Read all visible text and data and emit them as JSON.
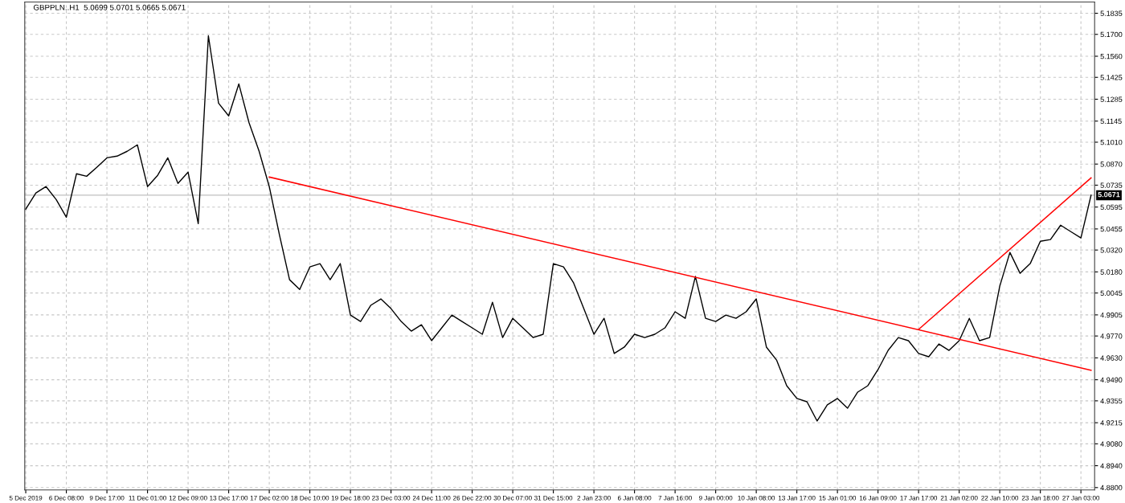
{
  "chart_data": {
    "type": "line",
    "title": "GBPPLN..H1  5.0699 5.0701 5.0665 5.0671",
    "categories": [
      "5 Dec 2019",
      null,
      null,
      null,
      "6 Dec 08:00",
      null,
      null,
      null,
      "9 Dec 17:00",
      null,
      null,
      null,
      "11 Dec 01:00",
      null,
      null,
      null,
      "12 Dec 09:00",
      null,
      null,
      null,
      "13 Dec 17:00",
      null,
      null,
      null,
      "17 Dec 02:00",
      null,
      null,
      null,
      "18 Dec 10:00",
      null,
      null,
      null,
      "19 Dec 18:00",
      null,
      null,
      null,
      "23 Dec 03:00",
      null,
      null,
      null,
      "24 Dec 11:00",
      null,
      null,
      null,
      "26 Dec 22:00",
      null,
      null,
      null,
      "30 Dec 07:00",
      null,
      null,
      null,
      "31 Dec 15:00",
      null,
      null,
      null,
      "2 Jan 23:00",
      null,
      null,
      null,
      "6 Jan 08:00",
      null,
      null,
      null,
      "7 Jan 16:00",
      null,
      null,
      null,
      "9 Jan 00:00",
      null,
      null,
      null,
      "10 Jan 08:00",
      null,
      null,
      null,
      "13 Jan 17:00",
      null,
      null,
      null,
      "15 Jan 01:00",
      null,
      null,
      null,
      "16 Jan 09:00",
      null,
      null,
      null,
      "17 Jan 17:00",
      null,
      null,
      null,
      "21 Jan 02:00",
      null,
      null,
      null,
      "22 Jan 10:00",
      null,
      null,
      null,
      "23 Jan 18:00",
      null,
      null,
      null,
      "27 Jan 03:00",
      null
    ],
    "series": [
      {
        "color": "#000000",
        "values": [
          5.0582,
          5.0685,
          5.0726,
          5.0643,
          5.053,
          5.0808,
          5.0792,
          5.0849,
          5.091,
          5.0921,
          5.0952,
          5.0993,
          5.0726,
          5.0798,
          5.091,
          5.0746,
          5.0818,
          5.0489,
          5.1691,
          5.126,
          5.1178,
          5.1383,
          5.1136,
          5.0952,
          5.0726,
          5.0418,
          5.013,
          5.0068,
          5.0212,
          5.0233,
          5.013,
          5.0233,
          4.9904,
          4.9863,
          4.9966,
          5.0007,
          4.9945,
          4.9863,
          4.9801,
          4.9842,
          4.974,
          4.9822,
          4.9904,
          4.9863,
          4.9822,
          4.9781,
          4.9986,
          4.976,
          4.9883,
          4.9822,
          4.976,
          4.9781,
          5.0233,
          5.0212,
          5.0109,
          4.9945,
          4.9781,
          4.9883,
          4.9658,
          4.9699,
          4.9781,
          4.976,
          4.9781,
          4.9822,
          4.9925,
          4.9883,
          5.0151,
          4.9883,
          4.9863,
          4.9904,
          4.9883,
          4.9925,
          5.0007,
          4.9699,
          4.9616,
          4.9452,
          4.937,
          4.9349,
          4.9226,
          4.9329,
          4.937,
          4.9308,
          4.9411,
          4.9452,
          4.9555,
          4.9678,
          4.976,
          4.974,
          4.9658,
          4.9637,
          4.9719,
          4.9678,
          4.974,
          4.9883,
          4.974,
          4.976,
          5.0089,
          5.0305,
          5.0171,
          5.0233,
          5.0376,
          5.0387,
          5.0479,
          5.0438,
          5.0397,
          5.0671
        ]
      },
      {
        "type": "line",
        "color": "#ff0000",
        "values": [
          null,
          null,
          null,
          null,
          null,
          null,
          null,
          null,
          null,
          null,
          null,
          null,
          null,
          null,
          null,
          null,
          null,
          null,
          null,
          null,
          null,
          null,
          null,
          null,
          5.0787,
          null,
          null,
          null,
          null,
          null,
          null,
          null,
          null,
          null,
          null,
          null,
          null,
          null,
          null,
          null,
          null,
          null,
          null,
          null,
          null,
          null,
          null,
          null,
          null,
          null,
          null,
          null,
          null,
          null,
          null,
          null,
          null,
          null,
          null,
          null,
          null,
          null,
          null,
          null,
          null,
          null,
          null,
          null,
          null,
          null,
          null,
          null,
          null,
          null,
          null,
          null,
          null,
          null,
          null,
          null,
          null,
          null,
          null,
          null,
          null,
          null,
          null,
          null,
          null,
          null,
          null,
          null,
          null,
          null,
          null,
          null,
          null,
          null,
          null,
          null,
          null,
          null,
          null,
          null,
          null,
          4.955
        ]
      },
      {
        "type": "line",
        "color": "#ff0000",
        "values": [
          null,
          null,
          null,
          null,
          null,
          null,
          null,
          null,
          null,
          null,
          null,
          null,
          null,
          null,
          null,
          null,
          null,
          null,
          null,
          null,
          null,
          null,
          null,
          null,
          null,
          null,
          null,
          null,
          null,
          null,
          null,
          null,
          null,
          null,
          null,
          null,
          null,
          null,
          null,
          null,
          null,
          null,
          null,
          null,
          null,
          null,
          null,
          null,
          null,
          null,
          null,
          null,
          null,
          null,
          null,
          null,
          null,
          null,
          null,
          null,
          null,
          null,
          null,
          null,
          null,
          null,
          null,
          null,
          null,
          null,
          null,
          null,
          null,
          null,
          null,
          null,
          null,
          null,
          null,
          null,
          null,
          null,
          null,
          null,
          null,
          null,
          null,
          null,
          4.9812,
          null,
          null,
          null,
          null,
          null,
          null,
          null,
          null,
          null,
          null,
          null,
          null,
          null,
          null,
          null,
          null,
          5.0782
        ]
      }
    ],
    "ylim": [
      4.8785,
      5.1907
    ],
    "yticks": [
      {
        "value": 4.88,
        "label": "4.8800"
      },
      {
        "value": 4.894,
        "label": "4.8940"
      },
      {
        "value": 4.908,
        "label": "4.9080"
      },
      {
        "value": 4.9215,
        "label": "4.9215"
      },
      {
        "value": 4.9355,
        "label": "4.9355"
      },
      {
        "value": 4.949,
        "label": "4.9490"
      },
      {
        "value": 4.963,
        "label": "4.9630"
      },
      {
        "value": 4.977,
        "label": "4.9770"
      },
      {
        "value": 4.9905,
        "label": "4.9905"
      },
      {
        "value": 5.0045,
        "label": "5.0045"
      },
      {
        "value": 5.018,
        "label": "5.0180"
      },
      {
        "value": 5.032,
        "label": "5.0320"
      },
      {
        "value": 5.0455,
        "label": "5.0455"
      },
      {
        "value": 5.0595,
        "label": "5.0595"
      },
      {
        "value": 5.0735,
        "label": "5.0735"
      },
      {
        "value": 5.087,
        "label": "5.0870"
      },
      {
        "value": 5.101,
        "label": "5.1010"
      },
      {
        "value": 5.1145,
        "label": "5.1145"
      },
      {
        "value": 5.1285,
        "label": "5.1285"
      },
      {
        "value": 5.1425,
        "label": "5.1425"
      },
      {
        "value": 5.156,
        "label": "5.1560"
      },
      {
        "value": 5.17,
        "label": "5.1700"
      },
      {
        "value": 5.1835,
        "label": "5.1835"
      }
    ],
    "ref_lines": [
      {
        "axis": "y",
        "value": 5.0671,
        "label": "5.0671",
        "color": "#c0c0c0"
      }
    ],
    "grid": true,
    "legend": false
  }
}
